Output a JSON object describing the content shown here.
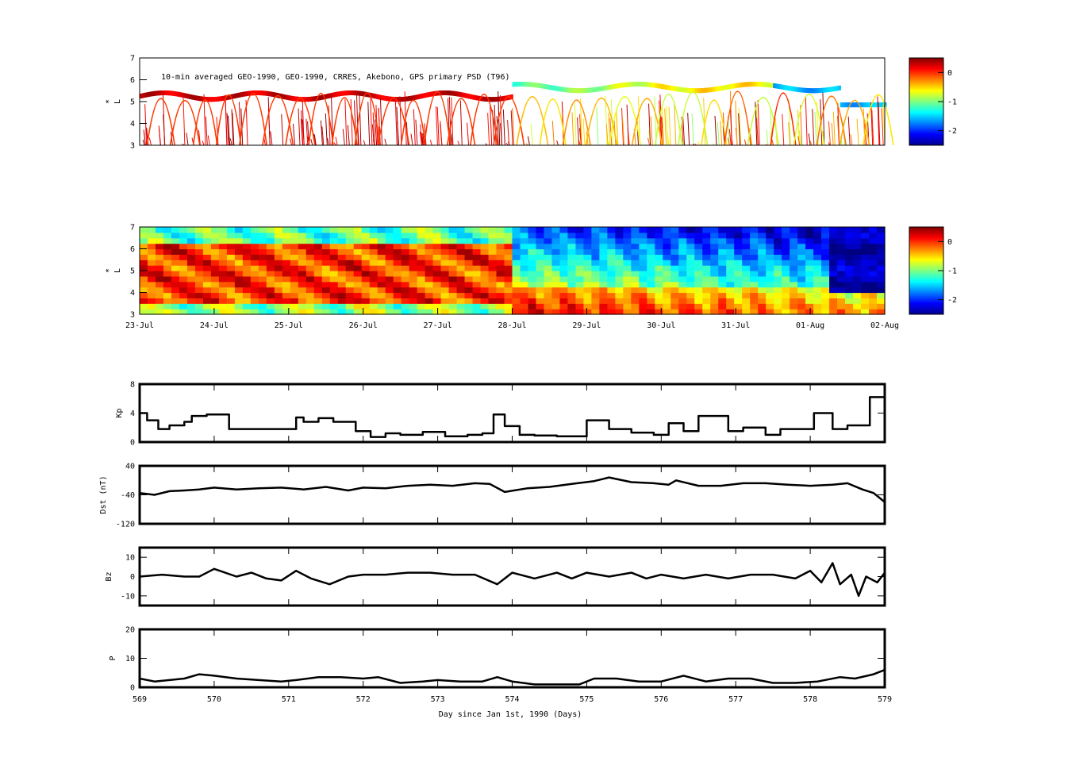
{
  "figure": {
    "panel1_title": "10-min averaged GEO-1990, GEO-1990, CRRES, Akebono, GPS  primary PSD (T96)",
    "x_label": "Day since Jan 1st, 1990 (Days)"
  },
  "chart_data": [
    {
      "type": "scatter",
      "title": "10-min averaged GEO-1990, GEO-1990, CRRES, Akebono, GPS  primary PSD (T96)",
      "ylabel": "L*",
      "ylim": [
        3,
        7
      ],
      "yticks": [
        "3",
        "4",
        "5",
        "6",
        "7"
      ],
      "xlim": [
        569,
        579
      ],
      "colorbar": {
        "range": [
          -2.5,
          0.5
        ],
        "ticks": [
          "0",
          "-1",
          "-2"
        ],
        "colormap": "jet"
      }
    },
    {
      "type": "heatmap",
      "ylabel": "L*",
      "ylim": [
        3,
        7
      ],
      "yticks": [
        "3",
        "4",
        "5",
        "6",
        "7"
      ],
      "xlim": [
        569,
        579
      ],
      "xtick_labels": [
        "23-Jul",
        "24-Jul",
        "25-Jul",
        "26-Jul",
        "27-Jul",
        "28-Jul",
        "29-Jul",
        "30-Jul",
        "31-Jul",
        "01-Aug",
        "02-Aug"
      ],
      "colorbar": {
        "range": [
          -2.5,
          0.5
        ],
        "ticks": [
          "0",
          "-1",
          "-2"
        ],
        "colormap": "jet"
      }
    },
    {
      "type": "line",
      "ylabel": "Kp",
      "ylim": [
        0,
        8
      ],
      "yticks": [
        "0",
        "4",
        "8"
      ],
      "xlim": [
        569,
        579
      ],
      "x": [
        569.0,
        569.1,
        569.25,
        569.4,
        569.6,
        569.7,
        569.9,
        570.2,
        570.6,
        570.8,
        571.1,
        571.2,
        571.4,
        571.6,
        571.9,
        572.1,
        572.3,
        572.5,
        572.8,
        573.1,
        573.4,
        573.6,
        573.75,
        573.9,
        574.1,
        574.3,
        574.6,
        574.8,
        575.0,
        575.3,
        575.6,
        575.9,
        576.1,
        576.3,
        576.5,
        576.9,
        577.1,
        577.4,
        577.6,
        577.9,
        578.05,
        578.3,
        578.5,
        578.8,
        579.0
      ],
      "values": [
        4.0,
        3.0,
        1.8,
        2.3,
        2.8,
        3.6,
        3.8,
        1.8,
        1.8,
        1.8,
        3.4,
        2.8,
        3.3,
        2.8,
        1.5,
        0.7,
        1.2,
        1.0,
        1.4,
        0.8,
        1.0,
        1.2,
        3.8,
        2.2,
        1.0,
        0.9,
        0.8,
        0.8,
        3.0,
        1.8,
        1.3,
        1.0,
        2.6,
        1.5,
        3.6,
        1.5,
        2.0,
        1.0,
        1.8,
        1.8,
        4.0,
        1.8,
        2.3,
        6.2,
        6.0
      ]
    },
    {
      "type": "line",
      "ylabel": "Dst (nT)",
      "ylim": [
        -120,
        40
      ],
      "yticks": [
        "-120",
        "-40",
        "40"
      ],
      "xlim": [
        569,
        579
      ],
      "x": [
        569.0,
        569.2,
        569.4,
        569.6,
        569.8,
        570.0,
        570.3,
        570.6,
        570.9,
        571.2,
        571.5,
        571.8,
        572.0,
        572.3,
        572.6,
        572.9,
        573.2,
        573.5,
        573.7,
        573.9,
        574.2,
        574.5,
        574.8,
        575.1,
        575.3,
        575.6,
        575.9,
        576.1,
        576.2,
        576.5,
        576.8,
        577.1,
        577.4,
        577.7,
        578.0,
        578.3,
        578.5,
        578.7,
        578.85,
        579.0
      ],
      "values": [
        -35,
        -40,
        -30,
        -28,
        -25,
        -20,
        -25,
        -22,
        -20,
        -25,
        -18,
        -28,
        -20,
        -22,
        -15,
        -12,
        -15,
        -8,
        -10,
        -32,
        -22,
        -18,
        -10,
        -2,
        8,
        -5,
        -8,
        -12,
        0,
        -15,
        -15,
        -8,
        -8,
        -12,
        -15,
        -12,
        -8,
        -25,
        -35,
        -60
      ]
    },
    {
      "type": "line",
      "ylabel": "Bz",
      "ylim": [
        -15,
        15
      ],
      "yticks": [
        "-10",
        "0",
        "10"
      ],
      "xlim": [
        569,
        579
      ],
      "x": [
        569.0,
        569.3,
        569.6,
        569.8,
        570.0,
        570.3,
        570.5,
        570.7,
        570.9,
        571.1,
        571.3,
        571.55,
        571.8,
        572.0,
        572.3,
        572.6,
        572.9,
        573.2,
        573.5,
        573.8,
        574.0,
        574.3,
        574.6,
        574.8,
        575.0,
        575.3,
        575.6,
        575.8,
        576.0,
        576.3,
        576.6,
        576.9,
        577.2,
        577.5,
        577.8,
        578.0,
        578.15,
        578.3,
        578.4,
        578.55,
        578.65,
        578.75,
        578.9,
        579.0
      ],
      "values": [
        0,
        1,
        0,
        0,
        4,
        0,
        2,
        -1,
        -2,
        3,
        -1,
        -4,
        0,
        1,
        1,
        2,
        2,
        1,
        1,
        -4,
        2,
        -1,
        2,
        -1,
        2,
        0,
        2,
        -1,
        1,
        -1,
        1,
        -1,
        1,
        1,
        -1,
        3,
        -3,
        7,
        -4,
        1,
        -10,
        0,
        -3,
        2
      ]
    },
    {
      "type": "line",
      "ylabel": "P",
      "ylim": [
        0,
        20
      ],
      "yticks": [
        "0",
        "10",
        "20"
      ],
      "xlim": [
        569,
        579
      ],
      "xtick_labels": [
        "569",
        "570",
        "571",
        "572",
        "573",
        "574",
        "575",
        "576",
        "577",
        "578",
        "579"
      ],
      "xlabel": "Day since Jan 1st, 1990 (Days)",
      "x": [
        569.0,
        569.2,
        569.4,
        569.6,
        569.8,
        570.0,
        570.3,
        570.6,
        570.9,
        571.1,
        571.4,
        571.7,
        572.0,
        572.2,
        572.5,
        572.8,
        573.0,
        573.3,
        573.6,
        573.8,
        574.0,
        574.3,
        574.6,
        574.9,
        575.1,
        575.4,
        575.7,
        576.0,
        576.3,
        576.6,
        576.9,
        577.2,
        577.5,
        577.8,
        578.1,
        578.4,
        578.6,
        578.85,
        579.0
      ],
      "values": [
        3,
        2,
        2.5,
        3,
        4.5,
        4,
        3,
        2.5,
        2,
        2.5,
        3.5,
        3.5,
        3,
        3.5,
        1.5,
        2,
        2.5,
        2,
        2,
        3.5,
        2,
        1,
        1,
        1,
        3,
        3,
        2,
        2,
        4,
        2,
        3,
        3,
        1.5,
        1.5,
        2,
        3.5,
        3,
        4.5,
        6
      ]
    }
  ]
}
